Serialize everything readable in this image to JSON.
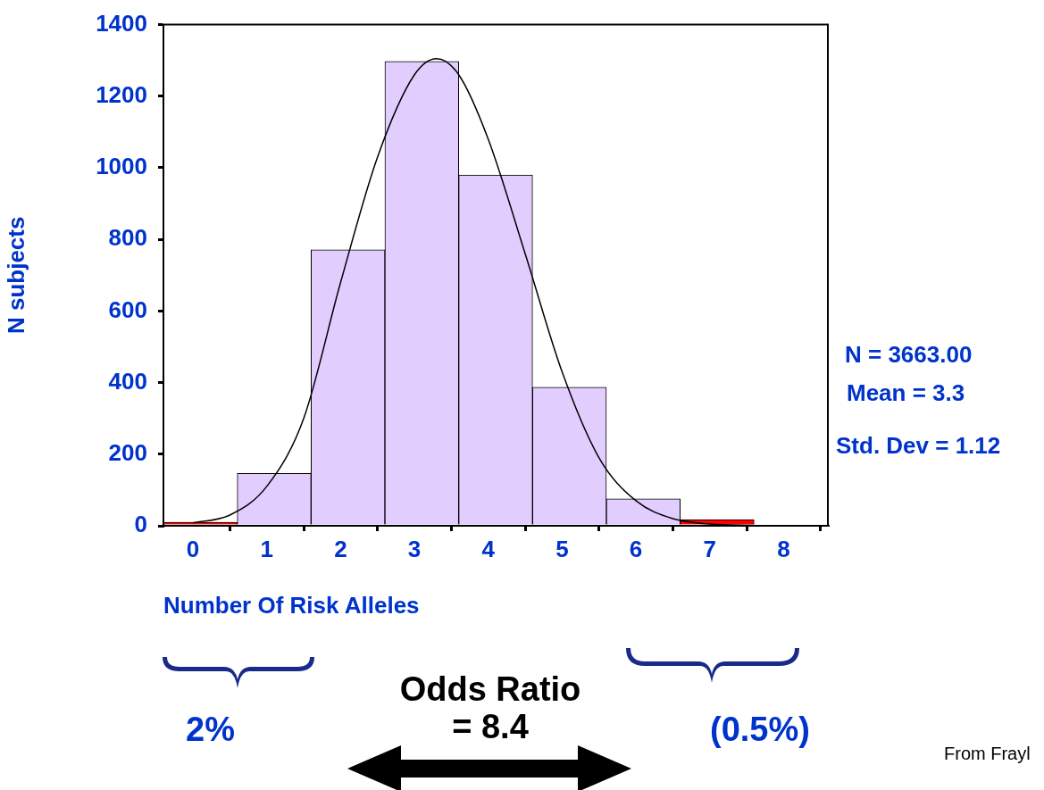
{
  "chart_data": {
    "type": "histogram",
    "xlabel": "Number Of Risk Alleles",
    "ylabel": "N subjects",
    "bins": [
      -0.4,
      0.6,
      1.6,
      2.6,
      3.6,
      4.6,
      5.6,
      6.6,
      7.6,
      8.6
    ],
    "values": [
      10,
      146,
      771,
      1297,
      980,
      387,
      75,
      17,
      0
    ],
    "colors": [
      "#ff0000",
      "#e2cdff",
      "#e2cdff",
      "#e2cdff",
      "#e2cdff",
      "#e2cdff",
      "#e2cdff",
      "#ff0000",
      "#e2cdff"
    ],
    "series": [
      {
        "type": "line",
        "color": "#000000",
        "x": [
          0,
          0.5,
          1,
          1.5,
          2,
          2.5,
          3,
          3.3,
          3.6,
          4,
          4.5,
          5,
          5.5,
          6,
          6.5,
          7,
          7.6
        ],
        "values": [
          8,
          30,
          110,
          300,
          680,
          1030,
          1260,
          1305,
          1260,
          1080,
          760,
          430,
          190,
          70,
          20,
          5,
          1
        ]
      }
    ],
    "xlim": [
      -0.4,
      8.6
    ],
    "xticks": [
      0,
      1,
      2,
      3,
      4,
      5,
      6,
      7,
      8
    ],
    "ylim": [
      0,
      1400
    ],
    "yticks": [
      0,
      200,
      400,
      600,
      800,
      1000,
      1200,
      1400
    ],
    "grid": false,
    "legend": false,
    "marker": "none",
    "line_style": "solid",
    "annotations": [
      "N = 3663.00",
      "Mean = 3.3",
      "Std. Dev = 1.12",
      "2%",
      "(0.5%)",
      "Odds Ratio\n= 8.4",
      "From Frayl"
    ]
  }
}
